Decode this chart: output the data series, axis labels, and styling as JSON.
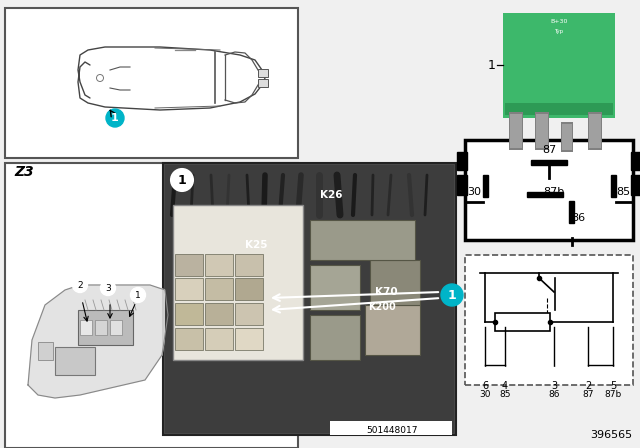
{
  "bg_color": "#f0f0f0",
  "white": "#ffffff",
  "black": "#000000",
  "teal": "#00b4c8",
  "relay_green": "#3db86b",
  "relay_green_dark": "#2d9a55",
  "gray_light": "#d8d8d8",
  "gray_mid": "#aaaaaa",
  "gray_dark": "#666666",
  "photo_bg": "#4a4a4a",
  "photo_dark": "#2a2a2a",
  "ref_number": "396565",
  "photo_stamp": "501448017",
  "pin_labels_row1": [
    "87"
  ],
  "pin_labels_row2": [
    "30",
    "87b",
    "85"
  ],
  "pin_labels_row3": [
    "86"
  ],
  "conn_nums_top": [
    "6",
    "4",
    "3",
    "2",
    "5"
  ],
  "conn_nums_bot": [
    "30",
    "85",
    "86",
    "87",
    "87b"
  ]
}
